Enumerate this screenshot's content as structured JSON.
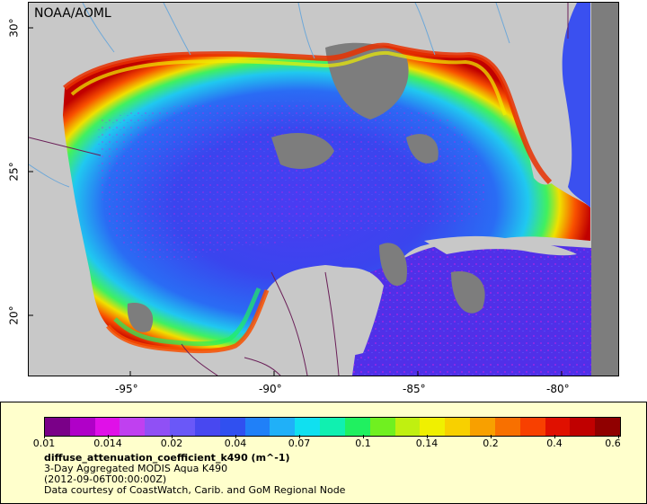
{
  "map": {
    "credit": "NOAA/AOML",
    "lat_ticks": [
      "30°",
      "25°",
      "20°"
    ],
    "lon_ticks": [
      "-95°",
      "-90°",
      "-85°",
      "-80°"
    ],
    "colors": {
      "land": "#c8c8c8",
      "no_data": "#7d7d7d",
      "borders": "#6a1f58",
      "rivers": "#6ea8d8"
    }
  },
  "legend": {
    "tick_labels": [
      "0.01",
      "0.014",
      "0.02",
      "0.04",
      "0.07",
      "0.1",
      "0.14",
      "0.2",
      "0.4",
      "0.6"
    ],
    "variable": "diffuse_attenuation_coefficient_k490 (m^-1)",
    "product": "3-Day Aggregated MODIS Aqua K490",
    "date": "(2012-09-06T00:00:00Z)",
    "courtesy": "Data courtesy of CoastWatch, Carib. and GoM Regional Node",
    "colorscale": [
      "#7a0088",
      "#b000c8",
      "#e010e8",
      "#c040f0",
      "#9050f5",
      "#6a58f8",
      "#4848f0",
      "#3050f0",
      "#2080f8",
      "#20b0f8",
      "#10e0f0",
      "#10f0b0",
      "#20f060",
      "#70f020",
      "#c0f010",
      "#f0f000",
      "#f8d000",
      "#f8a000",
      "#f87000",
      "#f84000",
      "#e01000",
      "#c00000",
      "#900000"
    ]
  }
}
